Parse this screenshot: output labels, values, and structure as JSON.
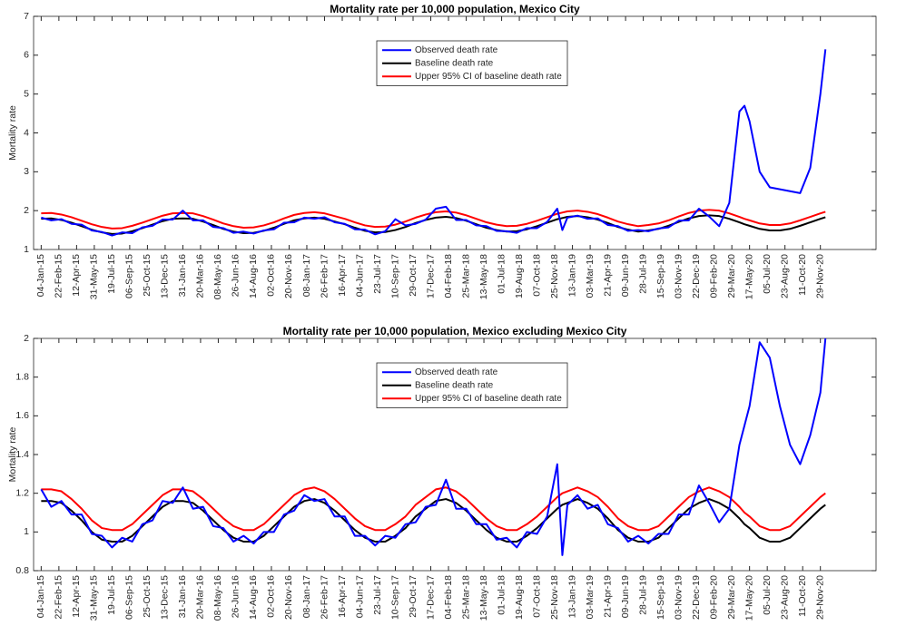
{
  "chart_data": [
    {
      "type": "line",
      "title": "Mortality rate per 10,000 population, Mexico City",
      "ylabel": "Mortality rate",
      "legend": "top",
      "grid": false,
      "xlim": [
        -3,
        330
      ],
      "ylim": [
        1,
        7
      ],
      "yticks": [
        1,
        2,
        3,
        4,
        5,
        6,
        7
      ],
      "xticks": [
        {
          "value": 0,
          "label": "04-Jan-15"
        },
        {
          "value": 7,
          "label": "22-Feb-15"
        },
        {
          "value": 14,
          "label": "12-Apr-15"
        },
        {
          "value": 21,
          "label": "31-May-15"
        },
        {
          "value": 28,
          "label": "19-Jul-15"
        },
        {
          "value": 35,
          "label": "06-Sep-15"
        },
        {
          "value": 42,
          "label": "25-Oct-15"
        },
        {
          "value": 49,
          "label": "13-Dec-15"
        },
        {
          "value": 56,
          "label": "31-Jan-16"
        },
        {
          "value": 63,
          "label": "20-Mar-16"
        },
        {
          "value": 70,
          "label": "08-May-16"
        },
        {
          "value": 77,
          "label": "26-Jun-16"
        },
        {
          "value": 84,
          "label": "14-Aug-16"
        },
        {
          "value": 91,
          "label": "02-Oct-16"
        },
        {
          "value": 98,
          "label": "20-Nov-16"
        },
        {
          "value": 105,
          "label": "08-Jan-17"
        },
        {
          "value": 112,
          "label": "26-Feb-17"
        },
        {
          "value": 119,
          "label": "16-Apr-17"
        },
        {
          "value": 126,
          "label": "04-Jun-17"
        },
        {
          "value": 133,
          "label": "23-Jul-17"
        },
        {
          "value": 140,
          "label": "10-Sep-17"
        },
        {
          "value": 147,
          "label": "29-Oct-17"
        },
        {
          "value": 154,
          "label": "17-Dec-17"
        },
        {
          "value": 161,
          "label": "04-Feb-18"
        },
        {
          "value": 168,
          "label": "25-Mar-18"
        },
        {
          "value": 175,
          "label": "13-May-18"
        },
        {
          "value": 182,
          "label": "01-Jul-18"
        },
        {
          "value": 189,
          "label": "19-Aug-18"
        },
        {
          "value": 196,
          "label": "07-Oct-18"
        },
        {
          "value": 203,
          "label": "25-Nov-18"
        },
        {
          "value": 210,
          "label": "13-Jan-19"
        },
        {
          "value": 217,
          "label": "03-Mar-19"
        },
        {
          "value": 224,
          "label": "21-Apr-19"
        },
        {
          "value": 231,
          "label": "09-Jun-19"
        },
        {
          "value": 238,
          "label": "28-Jul-19"
        },
        {
          "value": 245,
          "label": "15-Sep-19"
        },
        {
          "value": 252,
          "label": "03-Nov-19"
        },
        {
          "value": 259,
          "label": "22-Dec-19"
        },
        {
          "value": 266,
          "label": "09-Feb-20"
        },
        {
          "value": 273,
          "label": "29-Mar-20"
        },
        {
          "value": 280,
          "label": "17-May-20"
        },
        {
          "value": 287,
          "label": "05-Jul-20"
        },
        {
          "value": 294,
          "label": "23-Aug-20"
        },
        {
          "value": 301,
          "label": "11-Oct-20"
        },
        {
          "value": 308,
          "label": "29-Nov-20"
        }
      ],
      "x": [
        0,
        4,
        8,
        12,
        16,
        20,
        24,
        28,
        32,
        36,
        40,
        44,
        48,
        52,
        56,
        60,
        64,
        68,
        72,
        76,
        80,
        84,
        88,
        92,
        96,
        100,
        104,
        108,
        112,
        116,
        120,
        124,
        128,
        132,
        136,
        140,
        144,
        148,
        152,
        156,
        160,
        164,
        168,
        172,
        176,
        180,
        184,
        188,
        192,
        196,
        200,
        204,
        206,
        208,
        212,
        216,
        220,
        224,
        228,
        232,
        236,
        240,
        244,
        248,
        252,
        256,
        260,
        264,
        268,
        272,
        276,
        278,
        280,
        284,
        288,
        292,
        296,
        300,
        304,
        308,
        310
      ],
      "series": [
        {
          "name": "Observed death rate",
          "color": "#0000ff",
          "values": [
            1.82,
            1.75,
            1.78,
            1.66,
            1.64,
            1.49,
            1.45,
            1.36,
            1.44,
            1.42,
            1.57,
            1.61,
            1.77,
            1.77,
            2.0,
            1.75,
            1.75,
            1.58,
            1.55,
            1.43,
            1.46,
            1.41,
            1.49,
            1.52,
            1.69,
            1.7,
            1.82,
            1.79,
            1.83,
            1.7,
            1.66,
            1.52,
            1.51,
            1.39,
            1.47,
            1.78,
            1.62,
            1.66,
            1.77,
            2.05,
            2.1,
            1.76,
            1.76,
            1.62,
            1.6,
            1.48,
            1.47,
            1.43,
            1.55,
            1.55,
            1.71,
            2.05,
            1.5,
            1.82,
            1.87,
            1.79,
            1.8,
            1.63,
            1.6,
            1.48,
            1.5,
            1.47,
            1.54,
            1.57,
            1.74,
            1.75,
            2.05,
            1.85,
            1.6,
            2.2,
            4.55,
            4.7,
            4.3,
            3.0,
            2.6,
            2.55,
            2.5,
            2.45,
            3.1,
            5.0,
            6.15
          ]
        },
        {
          "name": "Baseline death rate",
          "color": "#000000",
          "values": [
            1.79,
            1.8,
            1.76,
            1.69,
            1.6,
            1.51,
            1.44,
            1.4,
            1.41,
            1.47,
            1.55,
            1.64,
            1.73,
            1.79,
            1.8,
            1.79,
            1.72,
            1.63,
            1.53,
            1.46,
            1.42,
            1.43,
            1.48,
            1.56,
            1.66,
            1.75,
            1.8,
            1.82,
            1.79,
            1.72,
            1.65,
            1.56,
            1.48,
            1.44,
            1.45,
            1.5,
            1.58,
            1.68,
            1.76,
            1.82,
            1.84,
            1.81,
            1.74,
            1.65,
            1.56,
            1.5,
            1.46,
            1.47,
            1.52,
            1.6,
            1.69,
            1.78,
            1.81,
            1.84,
            1.86,
            1.83,
            1.77,
            1.68,
            1.58,
            1.51,
            1.46,
            1.49,
            1.53,
            1.61,
            1.71,
            1.8,
            1.86,
            1.88,
            1.86,
            1.79,
            1.7,
            1.65,
            1.61,
            1.53,
            1.49,
            1.49,
            1.53,
            1.61,
            1.7,
            1.79,
            1.83
          ]
        },
        {
          "name": "Upper 95% CI of baseline death rate",
          "color": "#ff0000",
          "values": [
            1.93,
            1.94,
            1.9,
            1.83,
            1.74,
            1.65,
            1.58,
            1.54,
            1.55,
            1.61,
            1.69,
            1.78,
            1.87,
            1.93,
            1.94,
            1.93,
            1.86,
            1.77,
            1.67,
            1.6,
            1.56,
            1.57,
            1.62,
            1.7,
            1.8,
            1.89,
            1.94,
            1.96,
            1.93,
            1.86,
            1.79,
            1.7,
            1.62,
            1.58,
            1.59,
            1.64,
            1.72,
            1.82,
            1.9,
            1.96,
            1.98,
            1.95,
            1.88,
            1.79,
            1.7,
            1.64,
            1.6,
            1.61,
            1.66,
            1.74,
            1.83,
            1.92,
            1.95,
            1.98,
            2.0,
            1.97,
            1.91,
            1.82,
            1.72,
            1.65,
            1.6,
            1.63,
            1.67,
            1.75,
            1.85,
            1.94,
            2.0,
            2.02,
            2.0,
            1.93,
            1.84,
            1.79,
            1.75,
            1.67,
            1.63,
            1.63,
            1.67,
            1.75,
            1.84,
            1.93,
            1.97
          ]
        }
      ]
    },
    {
      "type": "line",
      "title": "Mortality rate per 10,000 population, Mexico excluding Mexico City",
      "ylabel": "Mortality rate",
      "legend": "top",
      "grid": false,
      "xlim": [
        -3,
        330
      ],
      "ylim": [
        0.8,
        2
      ],
      "yticks": [
        0.8,
        1,
        1.2,
        1.4,
        1.6,
        1.8,
        2
      ],
      "xticks": [
        {
          "value": 0,
          "label": "04-Jan-15"
        },
        {
          "value": 7,
          "label": "22-Feb-15"
        },
        {
          "value": 14,
          "label": "12-Apr-15"
        },
        {
          "value": 21,
          "label": "31-May-15"
        },
        {
          "value": 28,
          "label": "19-Jul-15"
        },
        {
          "value": 35,
          "label": "06-Sep-15"
        },
        {
          "value": 42,
          "label": "25-Oct-15"
        },
        {
          "value": 49,
          "label": "13-Dec-15"
        },
        {
          "value": 56,
          "label": "31-Jan-16"
        },
        {
          "value": 63,
          "label": "20-Mar-16"
        },
        {
          "value": 70,
          "label": "08-May-16"
        },
        {
          "value": 77,
          "label": "26-Jun-16"
        },
        {
          "value": 84,
          "label": "14-Aug-16"
        },
        {
          "value": 91,
          "label": "02-Oct-16"
        },
        {
          "value": 98,
          "label": "20-Nov-16"
        },
        {
          "value": 105,
          "label": "08-Jan-17"
        },
        {
          "value": 112,
          "label": "26-Feb-17"
        },
        {
          "value": 119,
          "label": "16-Apr-17"
        },
        {
          "value": 126,
          "label": "04-Jun-17"
        },
        {
          "value": 133,
          "label": "23-Jul-17"
        },
        {
          "value": 140,
          "label": "10-Sep-17"
        },
        {
          "value": 147,
          "label": "29-Oct-17"
        },
        {
          "value": 154,
          "label": "17-Dec-17"
        },
        {
          "value": 161,
          "label": "04-Feb-18"
        },
        {
          "value": 168,
          "label": "25-Mar-18"
        },
        {
          "value": 175,
          "label": "13-May-18"
        },
        {
          "value": 182,
          "label": "01-Jul-18"
        },
        {
          "value": 189,
          "label": "19-Aug-18"
        },
        {
          "value": 196,
          "label": "07-Oct-18"
        },
        {
          "value": 203,
          "label": "25-Nov-18"
        },
        {
          "value": 210,
          "label": "13-Jan-19"
        },
        {
          "value": 217,
          "label": "03-Mar-19"
        },
        {
          "value": 224,
          "label": "21-Apr-19"
        },
        {
          "value": 231,
          "label": "09-Jun-19"
        },
        {
          "value": 238,
          "label": "28-Jul-19"
        },
        {
          "value": 245,
          "label": "15-Sep-19"
        },
        {
          "value": 252,
          "label": "03-Nov-19"
        },
        {
          "value": 259,
          "label": "22-Dec-19"
        },
        {
          "value": 266,
          "label": "09-Feb-20"
        },
        {
          "value": 273,
          "label": "29-Mar-20"
        },
        {
          "value": 280,
          "label": "17-May-20"
        },
        {
          "value": 287,
          "label": "05-Jul-20"
        },
        {
          "value": 294,
          "label": "23-Aug-20"
        },
        {
          "value": 301,
          "label": "11-Oct-20"
        },
        {
          "value": 308,
          "label": "29-Nov-20"
        }
      ],
      "x": [
        0,
        4,
        8,
        12,
        16,
        20,
        24,
        28,
        32,
        36,
        40,
        44,
        48,
        52,
        56,
        60,
        64,
        68,
        72,
        76,
        80,
        84,
        88,
        92,
        96,
        100,
        104,
        108,
        112,
        116,
        120,
        124,
        128,
        132,
        136,
        140,
        144,
        148,
        152,
        156,
        160,
        164,
        168,
        172,
        176,
        180,
        184,
        188,
        192,
        196,
        200,
        204,
        206,
        208,
        212,
        216,
        220,
        224,
        228,
        232,
        236,
        240,
        244,
        248,
        252,
        256,
        260,
        264,
        268,
        272,
        276,
        278,
        280,
        284,
        288,
        292,
        296,
        300,
        304,
        308,
        310
      ],
      "series": [
        {
          "name": "Observed death rate",
          "color": "#0000ff",
          "values": [
            1.22,
            1.13,
            1.16,
            1.09,
            1.09,
            0.99,
            0.98,
            0.92,
            0.97,
            0.95,
            1.04,
            1.06,
            1.16,
            1.15,
            1.23,
            1.12,
            1.13,
            1.03,
            1.02,
            0.95,
            0.98,
            0.94,
            1.0,
            1.0,
            1.09,
            1.11,
            1.19,
            1.16,
            1.17,
            1.08,
            1.08,
            0.98,
            0.98,
            0.93,
            0.98,
            0.97,
            1.04,
            1.05,
            1.13,
            1.14,
            1.27,
            1.12,
            1.12,
            1.04,
            1.04,
            0.96,
            0.97,
            0.92,
            1.0,
            0.99,
            1.08,
            1.35,
            0.88,
            1.14,
            1.19,
            1.12,
            1.14,
            1.04,
            1.02,
            0.95,
            0.98,
            0.94,
            0.99,
            0.99,
            1.09,
            1.09,
            1.24,
            1.15,
            1.05,
            1.12,
            1.45,
            1.55,
            1.65,
            1.98,
            1.9,
            1.65,
            1.45,
            1.35,
            1.5,
            1.72,
            2.0
          ]
        },
        {
          "name": "Baseline death rate",
          "color": "#000000",
          "values": [
            1.16,
            1.16,
            1.15,
            1.11,
            1.06,
            1.0,
            0.96,
            0.95,
            0.95,
            0.98,
            1.03,
            1.08,
            1.13,
            1.16,
            1.16,
            1.15,
            1.11,
            1.06,
            1.01,
            0.97,
            0.95,
            0.95,
            0.98,
            1.03,
            1.08,
            1.13,
            1.16,
            1.17,
            1.15,
            1.11,
            1.06,
            1.01,
            0.97,
            0.95,
            0.95,
            0.98,
            1.02,
            1.08,
            1.12,
            1.16,
            1.17,
            1.15,
            1.11,
            1.06,
            1.01,
            0.97,
            0.95,
            0.95,
            0.98,
            1.02,
            1.07,
            1.12,
            1.14,
            1.15,
            1.17,
            1.15,
            1.12,
            1.07,
            1.01,
            0.97,
            0.95,
            0.95,
            0.97,
            1.02,
            1.07,
            1.12,
            1.15,
            1.17,
            1.15,
            1.12,
            1.07,
            1.04,
            1.02,
            0.97,
            0.95,
            0.95,
            0.97,
            1.02,
            1.07,
            1.12,
            1.14
          ]
        },
        {
          "name": "Upper 95% CI of baseline death rate",
          "color": "#ff0000",
          "values": [
            1.22,
            1.22,
            1.21,
            1.17,
            1.12,
            1.06,
            1.02,
            1.01,
            1.01,
            1.04,
            1.09,
            1.14,
            1.19,
            1.22,
            1.22,
            1.21,
            1.17,
            1.12,
            1.07,
            1.03,
            1.01,
            1.01,
            1.04,
            1.09,
            1.14,
            1.19,
            1.22,
            1.23,
            1.21,
            1.17,
            1.12,
            1.07,
            1.03,
            1.01,
            1.01,
            1.04,
            1.08,
            1.14,
            1.18,
            1.22,
            1.23,
            1.21,
            1.17,
            1.12,
            1.07,
            1.03,
            1.01,
            1.01,
            1.04,
            1.08,
            1.13,
            1.18,
            1.2,
            1.21,
            1.23,
            1.21,
            1.18,
            1.13,
            1.07,
            1.03,
            1.01,
            1.01,
            1.03,
            1.08,
            1.13,
            1.18,
            1.21,
            1.23,
            1.21,
            1.18,
            1.13,
            1.1,
            1.08,
            1.03,
            1.01,
            1.01,
            1.03,
            1.08,
            1.13,
            1.18,
            1.2
          ]
        }
      ]
    }
  ]
}
